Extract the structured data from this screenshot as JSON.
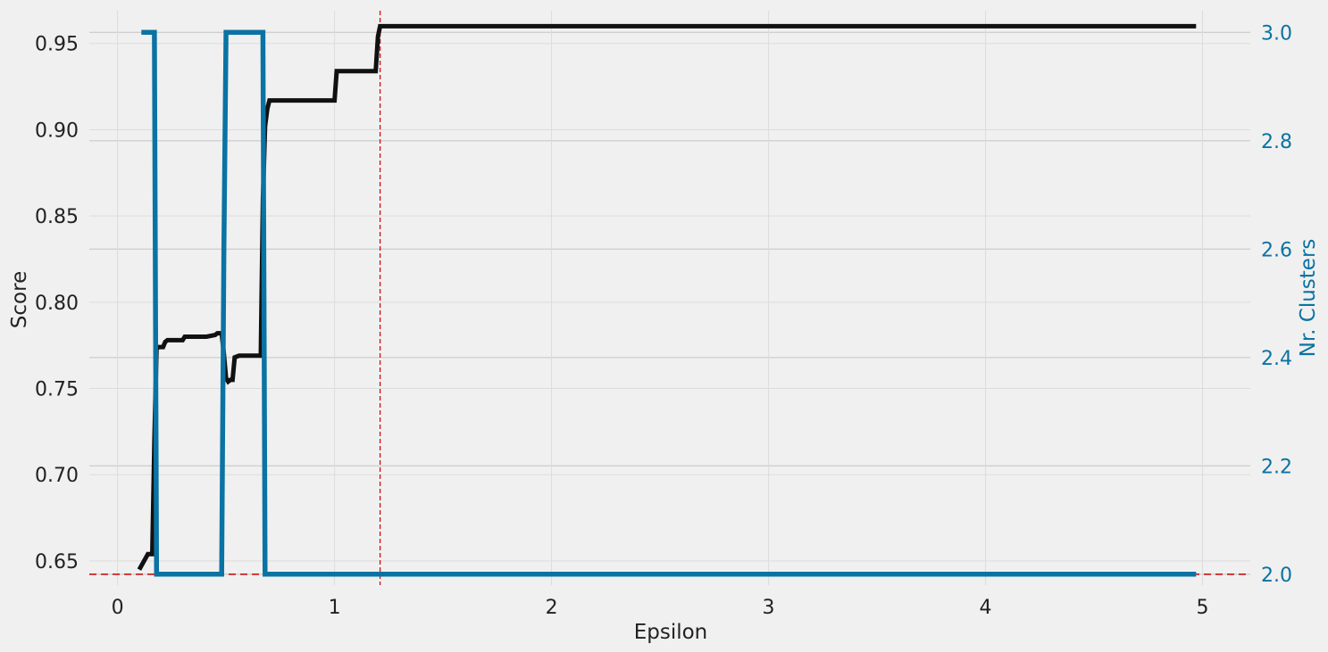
{
  "chart_data": {
    "type": "line",
    "xlabel": "Epsilon",
    "ylabel_left": "Score",
    "ylabel_right": "Nr. Clusters",
    "xlim": [
      -0.13,
      5.22
    ],
    "ylim_left": [
      0.636,
      0.969
    ],
    "ylim_right": [
      1.98,
      3.04
    ],
    "x_ticks": [
      "0",
      "1",
      "2",
      "3",
      "4",
      "5"
    ],
    "left_ticks": [
      "0.65",
      "0.70",
      "0.75",
      "0.80",
      "0.85",
      "0.90",
      "0.95"
    ],
    "right_ticks": [
      "2.0",
      "2.2",
      "2.4",
      "2.6",
      "2.8",
      "3.0"
    ],
    "grid": true,
    "colors": {
      "background": "#f0f0f0",
      "grid": "#dcdcdc",
      "grid_right": "#cfcfcf",
      "score": "#111111",
      "clusters": "#0a73a3",
      "reference": "#cc1111"
    },
    "series": [
      {
        "axis": "left",
        "x": [
          0.1,
          0.14,
          0.15,
          0.16,
          0.17,
          0.18,
          0.19,
          0.2,
          0.21,
          0.22,
          0.23,
          0.3,
          0.31,
          0.33,
          0.4,
          0.41,
          0.45,
          0.46,
          0.48,
          0.49,
          0.5,
          0.51,
          0.52,
          0.53,
          0.54,
          0.56,
          0.57,
          0.6,
          0.65,
          0.66,
          0.67,
          0.68,
          0.69,
          0.7,
          0.71,
          1.0,
          1.01,
          1.02,
          1.19,
          1.2,
          1.21,
          4.97
        ],
        "y": [
          0.645,
          0.654,
          0.654,
          0.654,
          0.72,
          0.773,
          0.774,
          0.774,
          0.774,
          0.777,
          0.778,
          0.778,
          0.78,
          0.78,
          0.78,
          0.78,
          0.781,
          0.782,
          0.782,
          0.77,
          0.756,
          0.754,
          0.755,
          0.755,
          0.768,
          0.769,
          0.769,
          0.769,
          0.769,
          0.769,
          0.86,
          0.902,
          0.912,
          0.917,
          0.917,
          0.917,
          0.934,
          0.934,
          0.934,
          0.954,
          0.96,
          0.96
        ]
      },
      {
        "axis": "right",
        "x": [
          0.11,
          0.16,
          0.17,
          0.18,
          0.19,
          0.48,
          0.49,
          0.5,
          0.51,
          0.66,
          0.67,
          0.68,
          0.69,
          4.97
        ],
        "y": [
          3.0,
          3.0,
          3.0,
          2.0,
          2.0,
          2.0,
          2.6,
          3.0,
          3.0,
          3.0,
          3.0,
          2.0,
          2.0,
          2.0
        ]
      }
    ],
    "reference_lines": [
      {
        "orientation": "vertical",
        "x": 1.21,
        "style": "dashed"
      },
      {
        "orientation": "horizontal",
        "axis": "right",
        "y": 2.0,
        "style": "dashed"
      }
    ]
  }
}
